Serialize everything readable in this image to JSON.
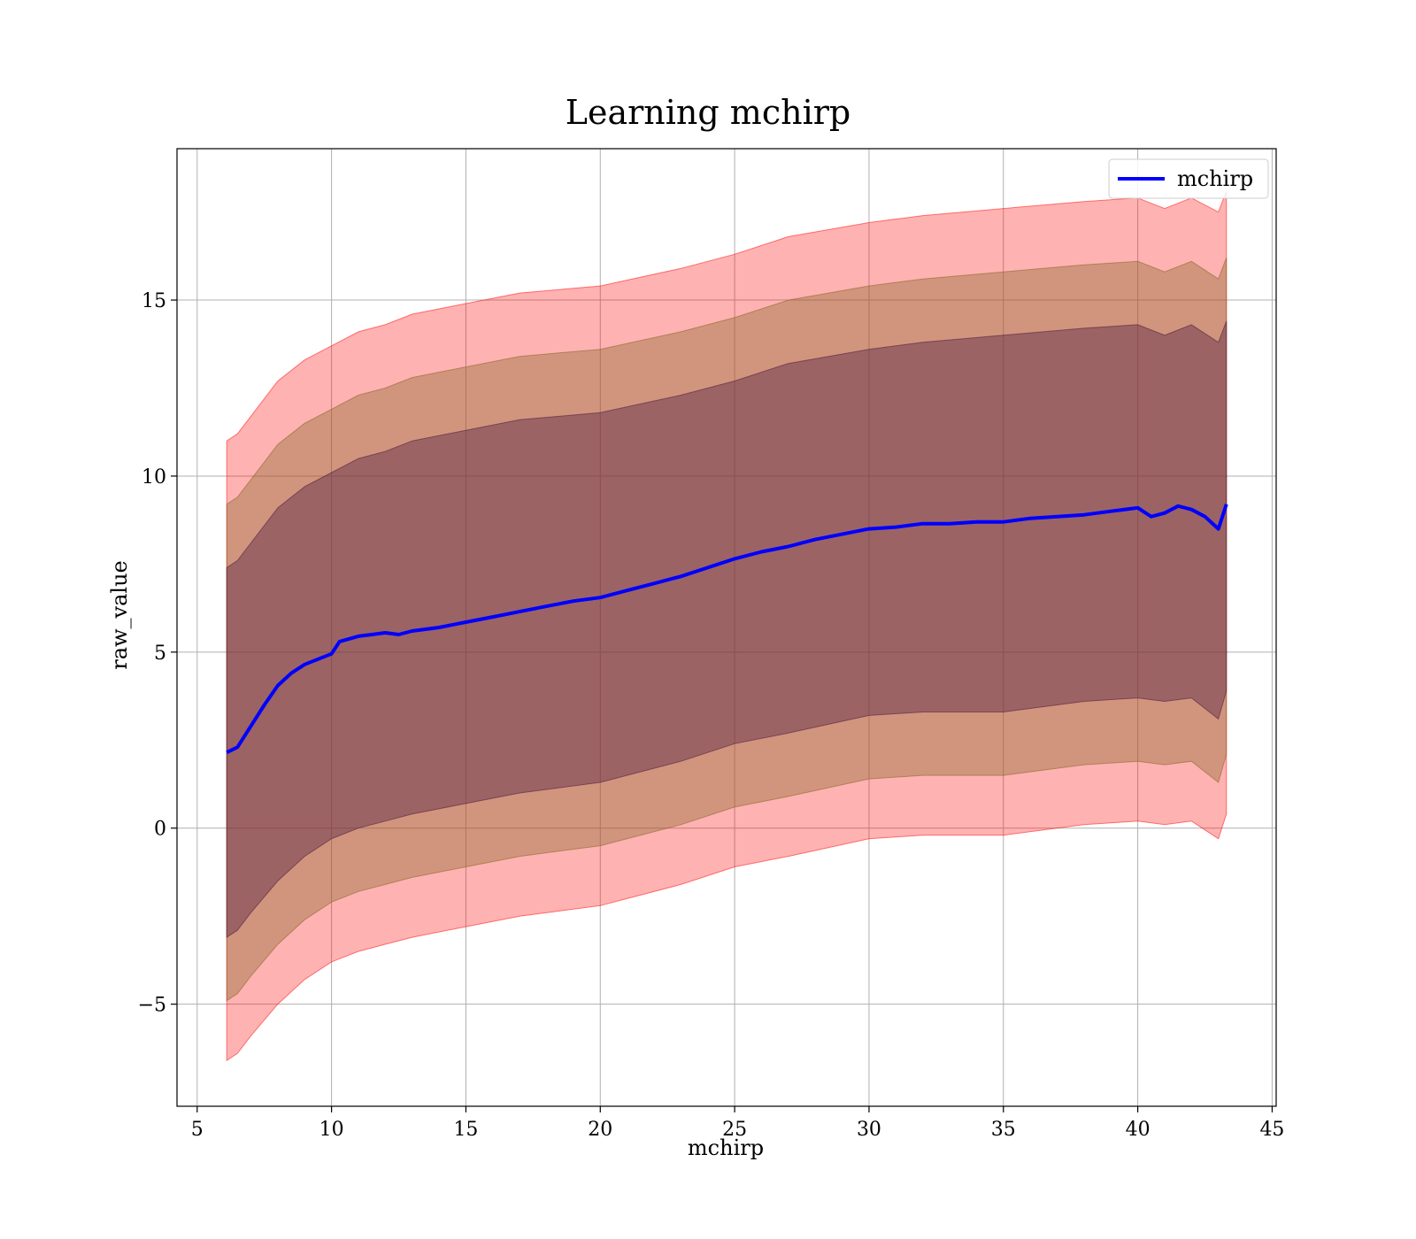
{
  "chart_data": {
    "type": "line",
    "title": "Learning mchirp",
    "xlabel": "mchirp",
    "ylabel": "raw_value",
    "xlim": [
      4.25,
      45.15
    ],
    "ylim": [
      -7.9,
      19.3
    ],
    "xticks": [
      5,
      10,
      15,
      20,
      25,
      30,
      35,
      40,
      45
    ],
    "yticks": [
      -5,
      0,
      5,
      10,
      15
    ],
    "xtick_labels": [
      "5",
      "10",
      "15",
      "20",
      "25",
      "30",
      "35",
      "40",
      "45"
    ],
    "ytick_labels": [
      "−5",
      "0",
      "5",
      "10",
      "15"
    ],
    "grid": true,
    "legend": {
      "placement": "top-right",
      "entries": [
        "mchirp"
      ]
    },
    "series": [
      {
        "name": "mchirp",
        "color": "#0000ff",
        "x": [
          6.1,
          6.5,
          7.0,
          7.5,
          8.0,
          8.5,
          9.0,
          9.5,
          10.0,
          10.3,
          11.0,
          11.5,
          12.0,
          12.5,
          13.0,
          14.0,
          15.0,
          16.0,
          17.0,
          18.0,
          19.0,
          20.0,
          21.0,
          22.0,
          23.0,
          24.0,
          25.0,
          26.0,
          27.0,
          28.0,
          29.0,
          30.0,
          31.0,
          32.0,
          33.0,
          34.0,
          35.0,
          36.0,
          37.0,
          38.0,
          39.0,
          40.0,
          40.5,
          41.0,
          41.5,
          42.0,
          42.5,
          43.0,
          43.3
        ],
        "values": [
          2.15,
          2.3,
          2.9,
          3.5,
          4.05,
          4.4,
          4.65,
          4.8,
          4.95,
          5.3,
          5.45,
          5.5,
          5.55,
          5.5,
          5.6,
          5.7,
          5.85,
          6.0,
          6.15,
          6.3,
          6.45,
          6.55,
          6.75,
          6.95,
          7.15,
          7.4,
          7.65,
          7.85,
          8.0,
          8.2,
          8.35,
          8.5,
          8.55,
          8.65,
          8.65,
          8.7,
          8.7,
          8.8,
          8.85,
          8.9,
          9.0,
          9.1,
          8.85,
          8.95,
          9.15,
          9.05,
          8.85,
          8.5,
          9.2
        ]
      }
    ],
    "bands": [
      {
        "color": "#ff0000",
        "opacity": 0.3,
        "x": [
          6.1,
          6.5,
          7.0,
          8.0,
          9.0,
          10.0,
          11.0,
          12.0,
          13.0,
          15.0,
          17.0,
          20.0,
          23.0,
          25.0,
          27.0,
          30.0,
          32.0,
          35.0,
          38.0,
          40.0,
          41.0,
          42.0,
          43.0,
          43.3
        ],
        "upper": [
          11.0,
          11.2,
          11.7,
          12.7,
          13.3,
          13.7,
          14.1,
          14.3,
          14.6,
          14.9,
          15.2,
          15.4,
          15.9,
          16.3,
          16.8,
          17.2,
          17.4,
          17.6,
          17.8,
          17.9,
          17.6,
          17.9,
          17.5,
          18.1
        ],
        "lower": [
          -6.6,
          -6.4,
          -5.9,
          -5.0,
          -4.3,
          -3.8,
          -3.5,
          -3.3,
          -3.1,
          -2.8,
          -2.5,
          -2.2,
          -1.6,
          -1.1,
          -0.8,
          -0.3,
          -0.2,
          -0.2,
          0.1,
          0.2,
          0.1,
          0.2,
          -0.3,
          0.4
        ]
      },
      {
        "color": "#8b6a2e",
        "opacity": 0.4,
        "x": [
          6.1,
          6.5,
          7.0,
          8.0,
          9.0,
          10.0,
          11.0,
          12.0,
          13.0,
          15.0,
          17.0,
          20.0,
          23.0,
          25.0,
          27.0,
          30.0,
          32.0,
          35.0,
          38.0,
          40.0,
          41.0,
          42.0,
          43.0,
          43.3
        ],
        "upper": [
          9.2,
          9.4,
          9.9,
          10.9,
          11.5,
          11.9,
          12.3,
          12.5,
          12.8,
          13.1,
          13.4,
          13.6,
          14.1,
          14.5,
          15.0,
          15.4,
          15.6,
          15.8,
          16.0,
          16.1,
          15.8,
          16.1,
          15.6,
          16.2
        ],
        "lower": [
          -4.9,
          -4.7,
          -4.2,
          -3.3,
          -2.6,
          -2.1,
          -1.8,
          -1.6,
          -1.4,
          -1.1,
          -0.8,
          -0.5,
          0.1,
          0.6,
          0.9,
          1.4,
          1.5,
          1.5,
          1.8,
          1.9,
          1.8,
          1.9,
          1.3,
          2.1
        ]
      },
      {
        "color": "#5a2646",
        "opacity": 0.45,
        "x": [
          6.1,
          6.5,
          7.0,
          8.0,
          9.0,
          10.0,
          11.0,
          12.0,
          13.0,
          15.0,
          17.0,
          20.0,
          23.0,
          25.0,
          27.0,
          30.0,
          32.0,
          35.0,
          38.0,
          40.0,
          41.0,
          42.0,
          43.0,
          43.3
        ],
        "upper": [
          7.4,
          7.6,
          8.1,
          9.1,
          9.7,
          10.1,
          10.5,
          10.7,
          11.0,
          11.3,
          11.6,
          11.8,
          12.3,
          12.7,
          13.2,
          13.6,
          13.8,
          14.0,
          14.2,
          14.3,
          14.0,
          14.3,
          13.8,
          14.4
        ],
        "lower": [
          -3.1,
          -2.9,
          -2.4,
          -1.5,
          -0.8,
          -0.3,
          0.0,
          0.2,
          0.4,
          0.7,
          1.0,
          1.3,
          1.9,
          2.4,
          2.7,
          3.2,
          3.3,
          3.3,
          3.6,
          3.7,
          3.6,
          3.7,
          3.1,
          3.9
        ]
      }
    ]
  }
}
